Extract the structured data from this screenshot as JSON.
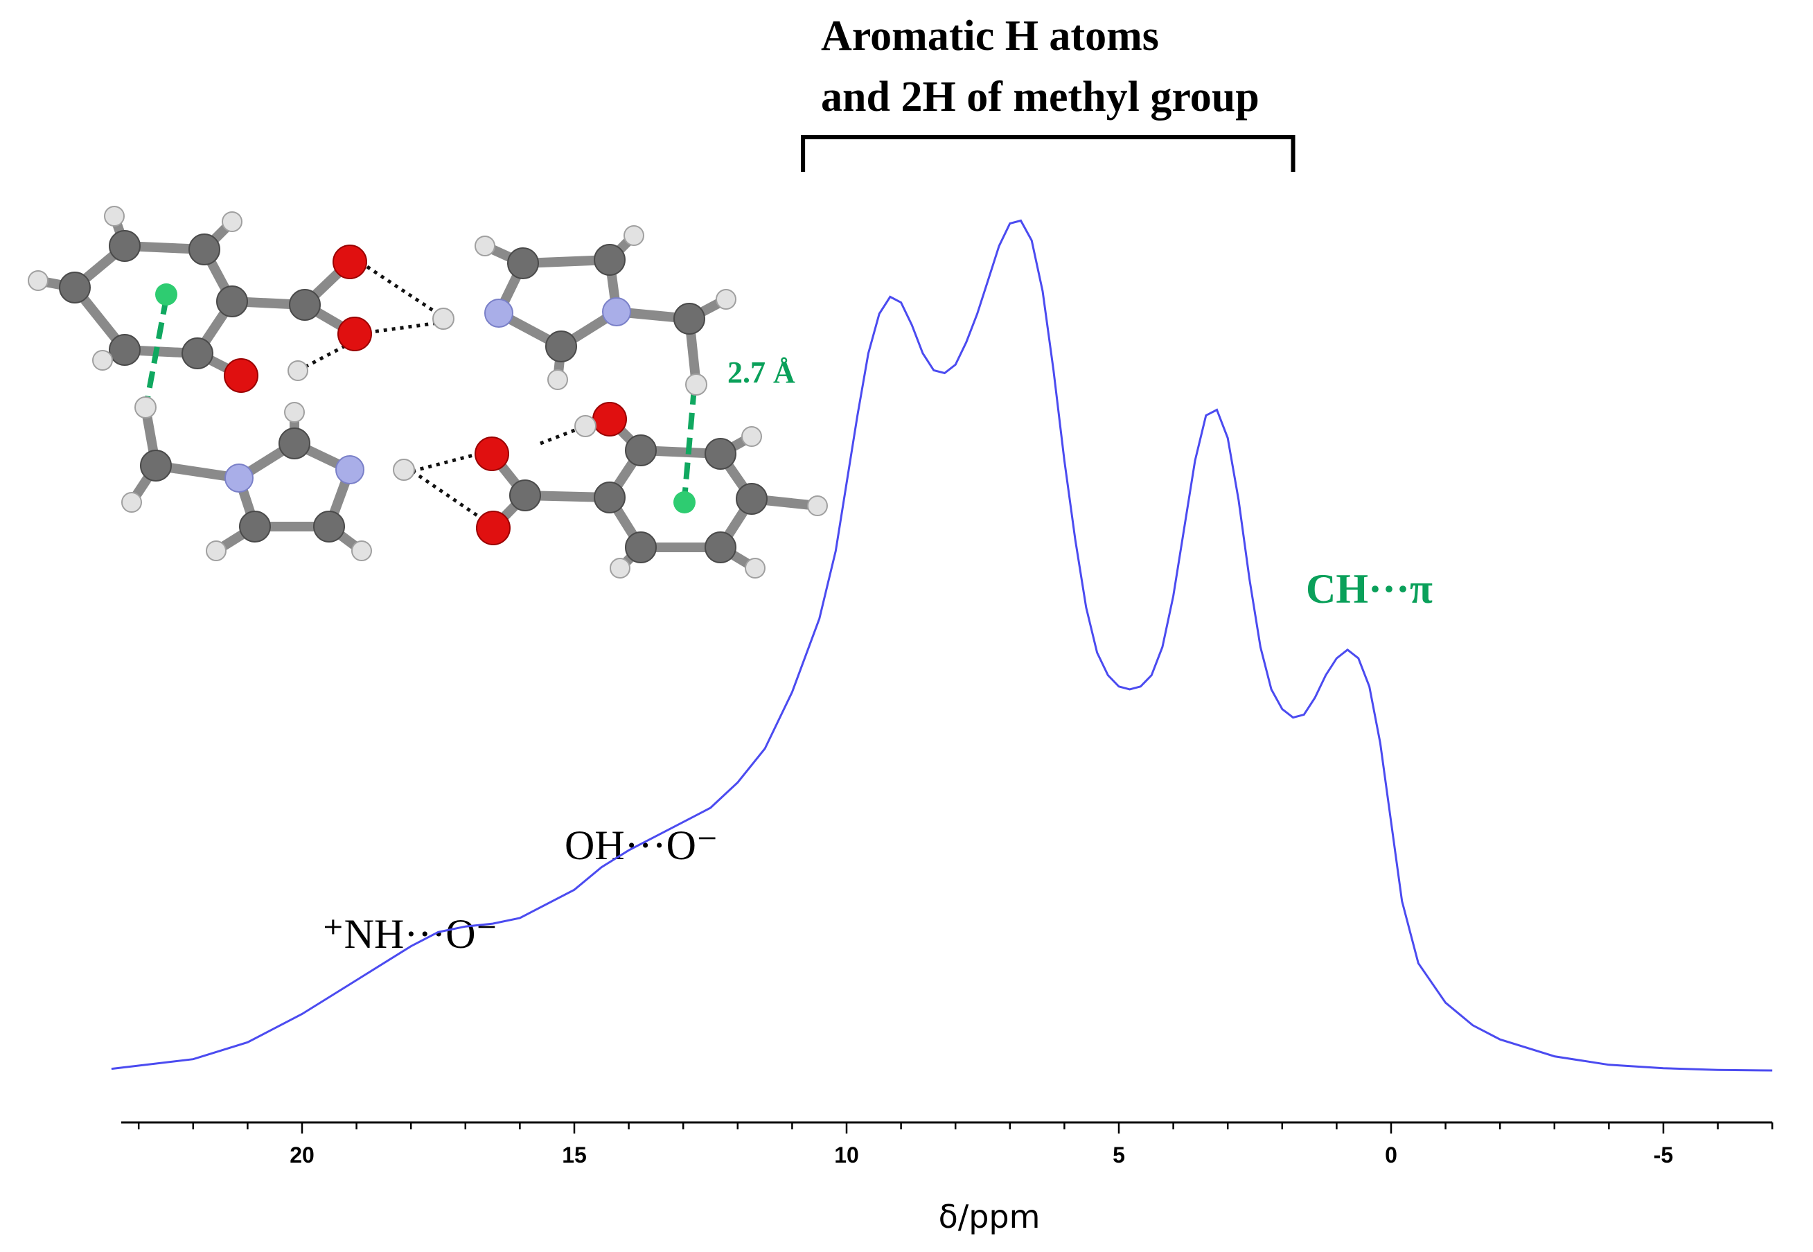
{
  "chart_data": {
    "type": "line",
    "xlabel": "δ/ppm",
    "xlim": [
      23.5,
      -7.0
    ],
    "x_reversed": true,
    "x_ticks": [
      20,
      15,
      10,
      5,
      0,
      -5
    ],
    "x_tick_labels": [
      "20",
      "15",
      "10",
      "5",
      "0",
      "-5"
    ],
    "ylabel": "",
    "y_axis_visible": false,
    "grid": false,
    "colors": {
      "spectrum": "#4b4bf0",
      "green": "#0aa05a",
      "axis": "#000000"
    },
    "series": [
      {
        "x": [
          23.5,
          22,
          21,
          20,
          19,
          18,
          17.5,
          17,
          16.5,
          16,
          15,
          14.5,
          14,
          13.5,
          13,
          12.5,
          12,
          11.5,
          11,
          10.5,
          10.2,
          10,
          9.8,
          9.6,
          9.4,
          9.2,
          9.0,
          8.8,
          8.6,
          8.4,
          8.2,
          8.0,
          7.8,
          7.6,
          7.4,
          7.2,
          7.0,
          6.8,
          6.6,
          6.4,
          6.2,
          6.0,
          5.8,
          5.6,
          5.4,
          5.2,
          5.0,
          4.8,
          4.6,
          4.4,
          4.2,
          4.0,
          3.8,
          3.6,
          3.4,
          3.2,
          3.0,
          2.8,
          2.6,
          2.4,
          2.2,
          2.0,
          1.8,
          1.6,
          1.4,
          1.2,
          1.0,
          0.8,
          0.6,
          0.4,
          0.2,
          0.0,
          -0.2,
          -0.5,
          -1.0,
          -1.5,
          -2,
          -3,
          -4,
          -5,
          -6,
          -7
        ],
        "y": [
          0.003,
          0.02,
          0.05,
          0.1,
          0.16,
          0.22,
          0.245,
          0.255,
          0.26,
          0.27,
          0.32,
          0.36,
          0.39,
          0.415,
          0.44,
          0.465,
          0.51,
          0.57,
          0.67,
          0.8,
          0.92,
          1.04,
          1.16,
          1.27,
          1.34,
          1.37,
          1.36,
          1.32,
          1.27,
          1.24,
          1.235,
          1.25,
          1.29,
          1.34,
          1.4,
          1.46,
          1.5,
          1.505,
          1.47,
          1.38,
          1.24,
          1.08,
          0.94,
          0.82,
          0.74,
          0.7,
          0.68,
          0.675,
          0.68,
          0.7,
          0.75,
          0.84,
          0.96,
          1.08,
          1.16,
          1.17,
          1.12,
          1.01,
          0.87,
          0.75,
          0.675,
          0.64,
          0.625,
          0.63,
          0.66,
          0.7,
          0.73,
          0.745,
          0.73,
          0.68,
          0.58,
          0.44,
          0.3,
          0.19,
          0.12,
          0.08,
          0.055,
          0.025,
          0.01,
          0.004,
          0.001,
          0.0
        ]
      }
    ],
    "annotations": {
      "bracket_line1": "Aromatic H atoms",
      "bracket_line2": "and 2H of methyl group",
      "bracket_range": [
        10.8,
        1.8
      ],
      "nh_label": "⁺NH···O⁻",
      "oh_label": "OH···O⁻",
      "ch_label": "CH···π",
      "distance_label": "2.7 Å"
    }
  }
}
